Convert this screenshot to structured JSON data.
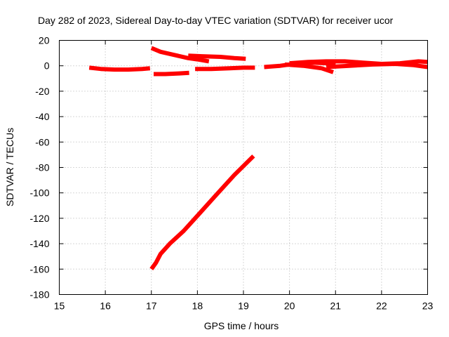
{
  "chart_data": {
    "type": "scatter",
    "title": "Day 282 of 2023, Sidereal Day-to-day VTEC variation (SDTVAR) for receiver ucor",
    "xlabel": "GPS time / hours",
    "ylabel": "SDTVAR / TECUs",
    "xlim": [
      15,
      23
    ],
    "ylim": [
      -180,
      20
    ],
    "xticks": [
      15,
      16,
      17,
      18,
      19,
      20,
      21,
      22,
      23
    ],
    "yticks": [
      20,
      0,
      -20,
      -40,
      -60,
      -80,
      -100,
      -120,
      -140,
      -160,
      -180
    ],
    "grid": true,
    "color": "#ff0000",
    "series": [
      {
        "x": [
          15.65,
          15.9,
          16.2,
          16.5,
          16.8,
          16.97
        ],
        "y": [
          -1.5,
          -2.5,
          -3,
          -3,
          -2.5,
          -2
        ]
      },
      {
        "x": [
          17.0,
          17.2,
          17.5,
          17.8,
          18.0,
          18.25
        ],
        "y": [
          14,
          11,
          8.5,
          6,
          5,
          3.5
        ]
      },
      {
        "x": [
          17.8,
          18.1,
          18.5,
          18.8,
          19.05
        ],
        "y": [
          8,
          7.5,
          7,
          6,
          5.5
        ]
      },
      {
        "x": [
          17.05,
          17.3,
          17.6,
          17.82
        ],
        "y": [
          -6.5,
          -6.5,
          -6,
          -5.5
        ]
      },
      {
        "x": [
          17.95,
          18.3,
          18.7,
          19.0,
          19.25
        ],
        "y": [
          -2.5,
          -2.5,
          -2,
          -1.5,
          -1.5
        ]
      },
      {
        "x": [
          19.45,
          19.8,
          20.1,
          20.5,
          20.8,
          21.0
        ],
        "y": [
          -1,
          0,
          1.5,
          2.5,
          2,
          1
        ]
      },
      {
        "x": [
          19.9,
          20.3,
          20.7,
          20.95
        ],
        "y": [
          1,
          0,
          -2,
          -5
        ]
      },
      {
        "x": [
          20.0,
          20.4,
          20.8,
          21.2,
          21.6,
          22.0,
          22.4,
          22.8,
          23.0
        ],
        "y": [
          2,
          3,
          3.5,
          3.5,
          2.5,
          1.5,
          2,
          3.5,
          3
        ]
      },
      {
        "x": [
          20.8,
          21.3,
          21.8,
          22.3,
          22.7,
          23.0
        ],
        "y": [
          -1,
          0,
          1,
          1.5,
          0.5,
          -1
        ]
      },
      {
        "x": [
          17.0,
          17.1,
          17.2,
          17.4,
          17.7,
          18.0,
          18.4,
          18.8,
          19.22
        ],
        "y": [
          -160,
          -155,
          -148,
          -140,
          -130,
          -118,
          -102,
          -86,
          -71
        ]
      }
    ]
  }
}
